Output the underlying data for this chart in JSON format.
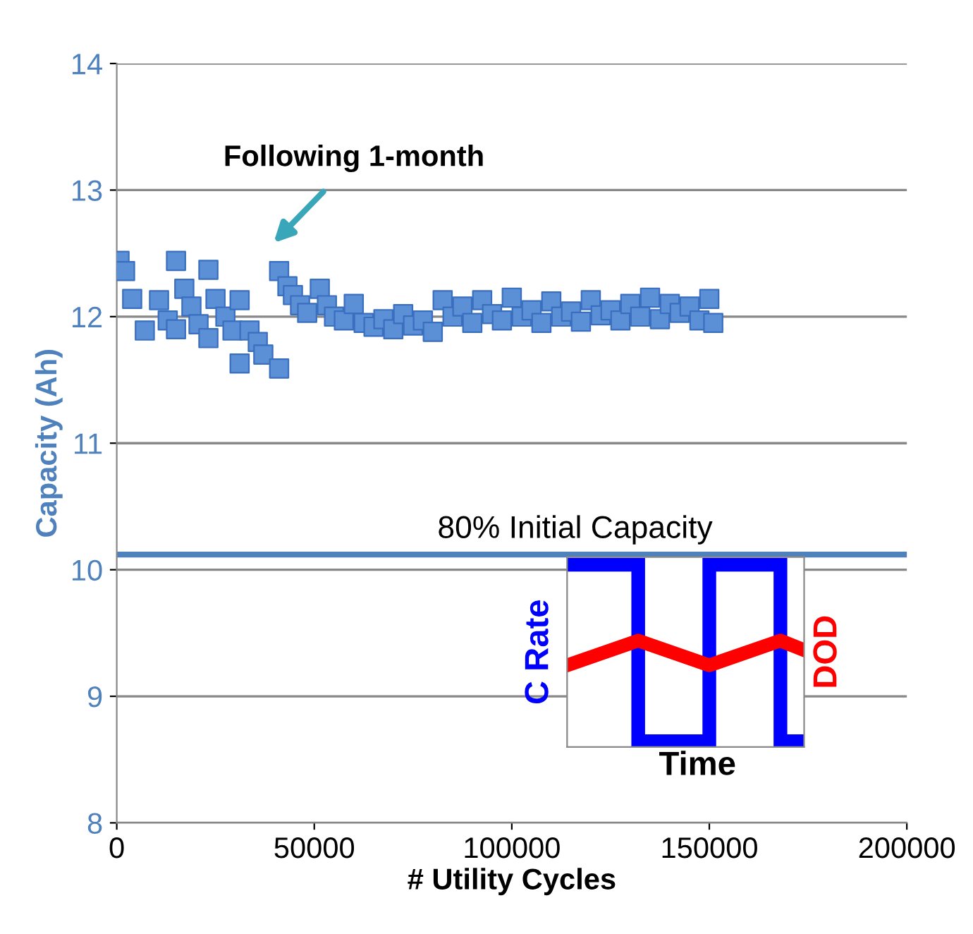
{
  "chart_data": {
    "type": "scatter",
    "xlabel": "# Utility Cycles",
    "ylabel": "Capacity (Ah)",
    "xlim": [
      0,
      200000
    ],
    "ylim": [
      8,
      14
    ],
    "xticks": [
      0,
      50000,
      100000,
      150000,
      200000
    ],
    "yticks": [
      8,
      9,
      10,
      11,
      12,
      13,
      14
    ],
    "grid": "y",
    "marker": "square",
    "series": [
      {
        "color": "#5b8fd6",
        "x": [
          700,
          2100,
          3900,
          7100,
          10700,
          12900,
          15000,
          15000,
          17100,
          18900,
          20700,
          23200,
          23200,
          25000,
          27500,
          29300,
          31100,
          31100,
          33600,
          35700,
          37100,
          41100,
          41100,
          43200,
          44600,
          46400,
          48200,
          51400,
          53200,
          55000,
          57500,
          60000,
          62500,
          65000,
          67500,
          70000,
          72500,
          75000,
          77500,
          80000,
          82500,
          85000,
          87500,
          90000,
          92500,
          95000,
          97500,
          100000,
          102500,
          105000,
          107500,
          110000,
          112500,
          115000,
          117500,
          120000,
          122500,
          125000,
          127500,
          130000,
          132500,
          135000,
          137500,
          140000,
          142500,
          145000,
          147500,
          150000,
          151000
        ],
        "values": [
          12.44,
          12.36,
          12.14,
          11.89,
          12.13,
          11.97,
          11.9,
          12.44,
          12.22,
          12.08,
          11.94,
          12.37,
          11.83,
          12.14,
          12.0,
          11.89,
          12.13,
          11.63,
          11.89,
          11.8,
          11.7,
          11.59,
          12.36,
          12.24,
          12.17,
          12.09,
          12.03,
          12.22,
          12.09,
          12.0,
          11.97,
          12.1,
          11.95,
          11.92,
          11.98,
          11.9,
          12.02,
          11.93,
          11.97,
          11.88,
          12.13,
          12.0,
          12.08,
          11.95,
          12.13,
          12.02,
          11.97,
          12.15,
          12.0,
          12.05,
          11.95,
          12.12,
          12.0,
          12.04,
          11.96,
          12.13,
          12.01,
          12.05,
          11.97,
          12.1,
          12.0,
          12.15,
          11.98,
          12.1,
          12.03,
          12.08,
          11.97,
          12.14,
          11.95
        ]
      }
    ],
    "ref_lines": [
      {
        "axis": "y",
        "value": 10.12,
        "label": "80% Initial Capacity",
        "color": "#4f81bd"
      }
    ],
    "annotations": [
      "Following 1-month",
      "C Rate",
      "DOD",
      "Time"
    ]
  }
}
